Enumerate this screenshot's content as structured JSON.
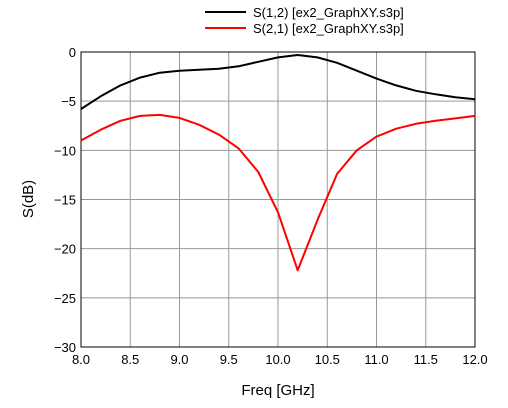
{
  "chart_data": {
    "type": "line",
    "title": "",
    "xlabel": "Freq [GHz]",
    "ylabel": "S(dB)",
    "xlim": [
      8.0,
      12.0
    ],
    "ylim": [
      -30,
      0
    ],
    "xticks": [
      8.0,
      8.5,
      9.0,
      9.5,
      10.0,
      10.5,
      11.0,
      11.5,
      12.0
    ],
    "xtick_labels": [
      "8.0",
      "8.5",
      "9.0",
      "9.5",
      "10.0",
      "10.5",
      "11.0",
      "11.5",
      "12.0"
    ],
    "yticks": [
      0,
      -5,
      -10,
      -15,
      -20,
      -25,
      -30
    ],
    "ytick_labels": [
      "0",
      "−5",
      "−10",
      "−15",
      "−20",
      "−25",
      "−30"
    ],
    "grid": true,
    "legend_position": "top",
    "series": [
      {
        "name": "S(1,2) [ex2_GraphXY.s3p]",
        "color": "#000000",
        "x": [
          8.0,
          8.2,
          8.4,
          8.6,
          8.8,
          9.0,
          9.2,
          9.4,
          9.6,
          9.8,
          10.0,
          10.2,
          10.4,
          10.6,
          10.8,
          11.0,
          11.2,
          11.4,
          11.6,
          11.8,
          12.0
        ],
        "values": [
          -5.8,
          -4.5,
          -3.4,
          -2.6,
          -2.1,
          -1.9,
          -1.8,
          -1.7,
          -1.45,
          -1.0,
          -0.55,
          -0.3,
          -0.55,
          -1.1,
          -1.9,
          -2.7,
          -3.4,
          -3.95,
          -4.3,
          -4.6,
          -4.8
        ]
      },
      {
        "name": "S(2,1) [ex2_GraphXY.s3p]",
        "color": "#ff0000",
        "x": [
          8.0,
          8.2,
          8.4,
          8.6,
          8.8,
          9.0,
          9.2,
          9.4,
          9.6,
          9.8,
          10.0,
          10.2,
          10.4,
          10.6,
          10.8,
          11.0,
          11.2,
          11.4,
          11.6,
          11.8,
          12.0
        ],
        "values": [
          -9.0,
          -7.9,
          -7.0,
          -6.5,
          -6.4,
          -6.7,
          -7.4,
          -8.4,
          -9.8,
          -12.2,
          -16.3,
          -22.2,
          -17.1,
          -12.4,
          -10.0,
          -8.6,
          -7.8,
          -7.3,
          -7.0,
          -6.75,
          -6.5
        ]
      }
    ]
  }
}
